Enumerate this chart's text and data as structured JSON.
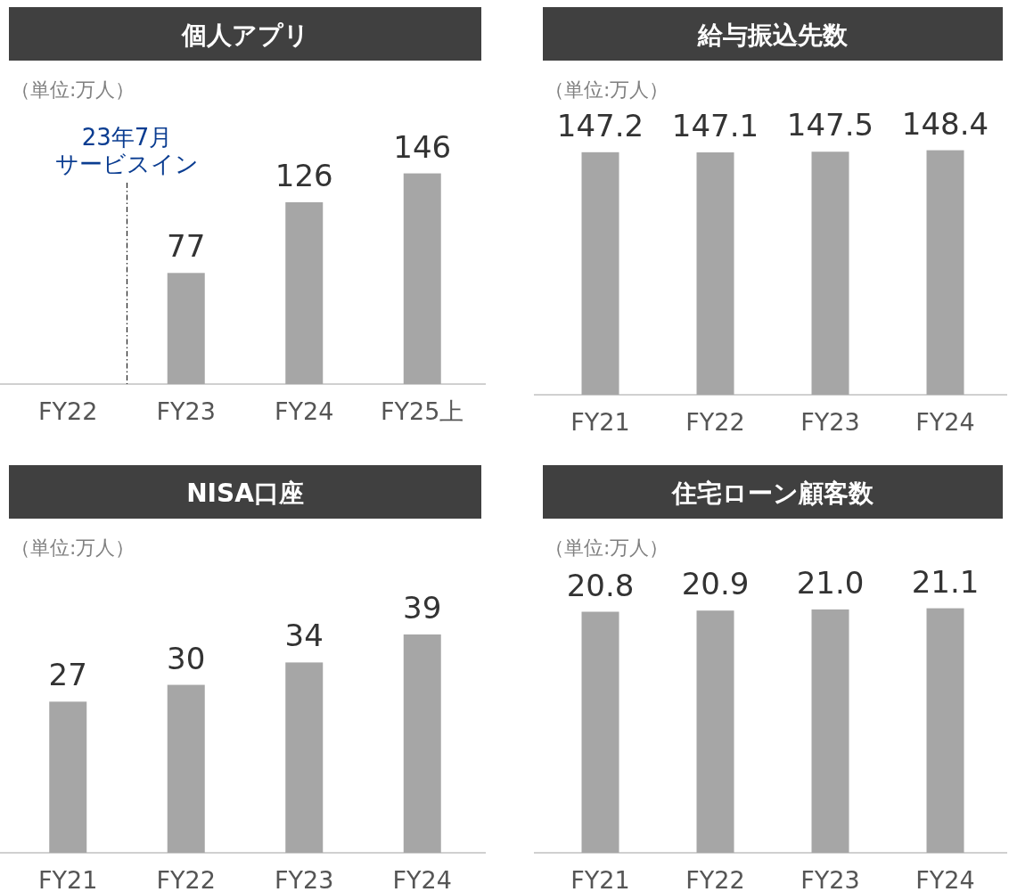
{
  "chart_data": [
    {
      "type": "bar",
      "title": "個人アプリ",
      "subtitle": "（単位:万人）",
      "categories": [
        "FY22",
        "FY23",
        "FY24",
        "FY25上"
      ],
      "values": [
        null,
        77,
        126,
        146
      ],
      "value_labels": [
        null,
        "77",
        "126",
        "146"
      ],
      "color": "#a6a6a6",
      "tick_labels": "x",
      "annotations": [
        "23年7月",
        "サービスイン"
      ]
    },
    {
      "type": "bar",
      "title": "給与振込先数",
      "subtitle": "（単位:万人）",
      "categories": [
        "FY21",
        "FY22",
        "FY23",
        "FY24"
      ],
      "values": [
        147.2,
        147.1,
        147.5,
        148.4
      ],
      "value_labels": [
        "147.2",
        "147.1",
        "147.5",
        "148.4"
      ],
      "color": "#a6a6a6",
      "tick_labels": "x"
    },
    {
      "type": "bar",
      "title": "NISA口座",
      "subtitle": "（単位:万人）",
      "categories": [
        "FY21",
        "FY22",
        "FY23",
        "FY24"
      ],
      "values": [
        27,
        30,
        34,
        39
      ],
      "value_labels": [
        "27",
        "30",
        "34",
        "39"
      ],
      "color": "#a6a6a6",
      "tick_labels": "x"
    },
    {
      "type": "bar",
      "title": "住宅ローン顧客数",
      "subtitle": "（単位:万人）",
      "categories": [
        "FY21",
        "FY22",
        "FY23",
        "FY24"
      ],
      "values": [
        20.8,
        20.9,
        21.0,
        21.1
      ],
      "value_labels": [
        "20.8",
        "20.9",
        "21.0",
        "21.1"
      ],
      "color": "#a6a6a6",
      "tick_labels": "x"
    }
  ]
}
